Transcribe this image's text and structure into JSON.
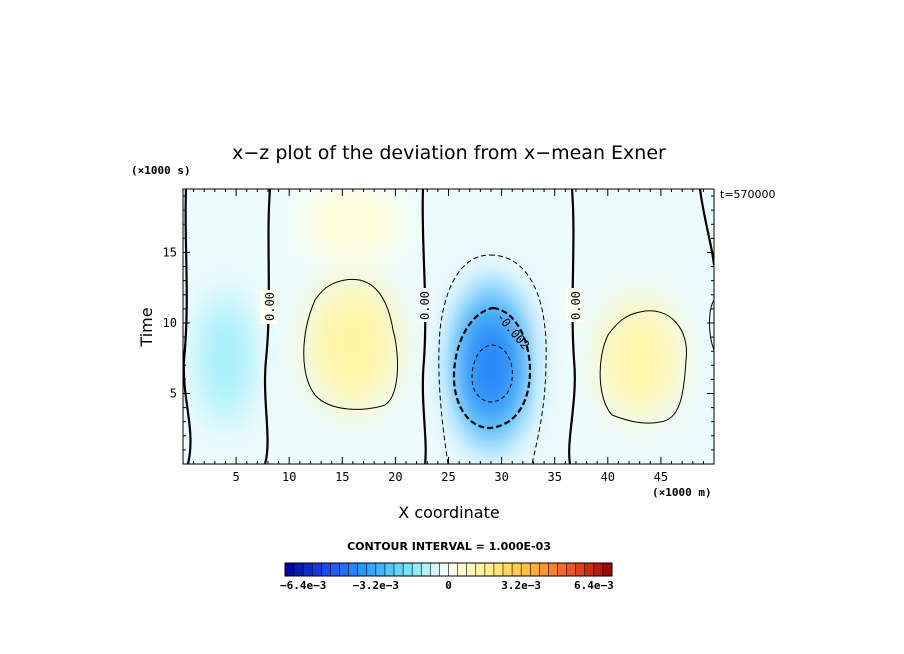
{
  "chart_data": {
    "type": "heatmap",
    "title": "x−z plot of the deviation from x−mean Exner",
    "xlabel": "X coordinate",
    "ylabel": "Time",
    "x_unit": "(×1000 m)",
    "y_unit": "(×1000 s)",
    "time_label": "t=570000",
    "xlim": [
      0,
      50
    ],
    "ylim": [
      0,
      19.5
    ],
    "x_ticks": [
      5,
      10,
      15,
      20,
      25,
      30,
      35,
      40,
      45
    ],
    "y_ticks": [
      5,
      10,
      15
    ],
    "contour_interval_text": "CONTOUR INTERVAL = 1.000E-03",
    "contour_labels": [
      "0.00",
      "0.00",
      "0.00",
      "-0.002"
    ],
    "colorbar": {
      "min": -0.0072,
      "max": 0.0072,
      "tick_labels": [
        "−6.4e−3",
        "−3.2e−3",
        "0",
        "3.2e−3",
        "6.4e−3"
      ]
    },
    "blobs": [
      {
        "x": 4.0,
        "y": 7.5,
        "rx": 3.0,
        "ry": 5.5,
        "value": -0.0012
      },
      {
        "x": 16.0,
        "y": 8.5,
        "rx": 5.0,
        "ry": 5.5,
        "value": 0.0014
      },
      {
        "x": 29.0,
        "y": 7.0,
        "rx": 4.0,
        "ry": 6.5,
        "value": -0.0042
      },
      {
        "x": 43.0,
        "y": 7.5,
        "rx": 4.5,
        "ry": 5.0,
        "value": 0.0013
      },
      {
        "x": 16.0,
        "y": 17.0,
        "rx": 5.5,
        "ry": 3.0,
        "value": 0.0006
      }
    ]
  }
}
